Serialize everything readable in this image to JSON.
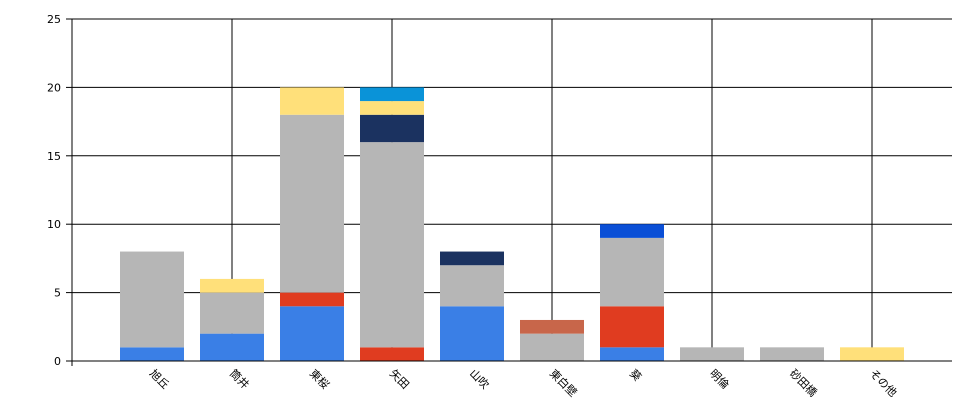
{
  "chart_data": {
    "type": "bar",
    "stacked": true,
    "grid": true,
    "categories": [
      "旭丘",
      "筒井",
      "東桜",
      "矢田",
      "山吹",
      "東白壁",
      "葵",
      "明倫",
      "砂田橋",
      "その他"
    ],
    "ylim": [
      0,
      25
    ],
    "yticks": [
      0,
      5,
      10,
      15,
      20,
      25
    ],
    "series": [
      {
        "color": "#3a7fe6",
        "values": [
          1,
          2,
          4,
          0,
          4,
          0,
          1,
          0,
          0,
          0
        ]
      },
      {
        "color": "#e03c20",
        "values": [
          0,
          0,
          1,
          1,
          0,
          0,
          3,
          0,
          0,
          0
        ]
      },
      {
        "color": "#b6b6b6",
        "values": [
          7,
          3,
          13,
          15,
          3,
          2,
          5,
          1,
          1,
          0
        ]
      },
      {
        "color": "#1b3260",
        "values": [
          0,
          0,
          0,
          2,
          1,
          0,
          0,
          0,
          0,
          0
        ]
      },
      {
        "color": "#c8664a",
        "values": [
          0,
          0,
          0,
          0,
          0,
          1,
          0,
          0,
          0,
          0
        ]
      },
      {
        "color": "#ffe07a",
        "values": [
          0,
          1,
          2,
          1,
          0,
          0,
          0,
          0,
          0,
          1
        ]
      },
      {
        "color": "#0a93d8",
        "values": [
          0,
          0,
          0,
          1,
          0,
          0,
          0,
          0,
          0,
          0
        ]
      },
      {
        "color": "#0a4fd6",
        "values": [
          0,
          0,
          0,
          0,
          0,
          0,
          1,
          0,
          0,
          0
        ]
      }
    ]
  }
}
